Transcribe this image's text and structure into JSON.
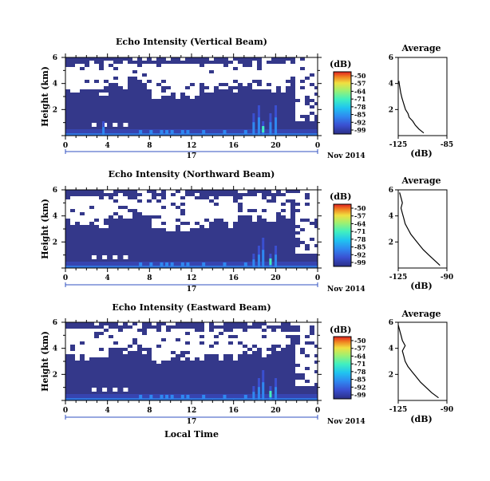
{
  "chart_data": [
    {
      "type": "heatmap",
      "title": "Echo Intensity (Vertical Beam)",
      "ylabel": "Height (km)",
      "yticks": [
        "6",
        "4",
        "2"
      ],
      "ylim": [
        0,
        6
      ],
      "xticks": [
        "0",
        "4",
        "8",
        "12",
        "16",
        "20",
        "0"
      ],
      "xlim": [
        0,
        24
      ],
      "date_day": "17",
      "date_label": "Nov 2014",
      "colorbar_unit": "(dB)",
      "colorbar_ticks": [
        "-50",
        "-57",
        "-64",
        "-71",
        "-78",
        "-85",
        "-92",
        "-99"
      ],
      "average_title": "Average",
      "average_xlabel": "(dB)",
      "average_xticks": [
        "-125",
        "-85"
      ],
      "average_yticks": [
        "6",
        "4",
        "2"
      ],
      "average_profile": [
        [
          0.2,
          -104
        ],
        [
          0.5,
          -108
        ],
        [
          0.8,
          -111
        ],
        [
          1.1,
          -113
        ],
        [
          1.4,
          -116
        ],
        [
          1.7,
          -117
        ],
        [
          2.0,
          -119
        ],
        [
          2.3,
          -120
        ],
        [
          2.6,
          -121
        ],
        [
          2.9,
          -122
        ],
        [
          3.3,
          -123
        ],
        [
          3.6,
          -123.5
        ],
        [
          3.9,
          -124
        ],
        [
          4.2,
          -124.5
        ]
      ],
      "sparse_echo_columns": [
        2.5,
        3.5,
        4.5,
        5.5
      ],
      "shallow_echo_columns": [
        7,
        8,
        9,
        9.5,
        10,
        11,
        11.5,
        13,
        15,
        17
      ],
      "strong_echo_columns": [
        3.5,
        17.8,
        18.3,
        18.7,
        19.4,
        19.9
      ]
    },
    {
      "type": "heatmap",
      "title": "Echo Intensity (Northward Beam)",
      "ylabel": "Height (km)",
      "yticks": [
        "6",
        "4",
        "2"
      ],
      "ylim": [
        0,
        6
      ],
      "xticks": [
        "0",
        "4",
        "8",
        "12",
        "16",
        "20",
        "0"
      ],
      "xlim": [
        0,
        24
      ],
      "date_day": "17",
      "date_label": "Nov 2014",
      "colorbar_unit": "(dB)",
      "colorbar_ticks": [
        "-50",
        "-57",
        "-64",
        "-71",
        "-78",
        "-85",
        "-92",
        "-99"
      ],
      "average_title": "Average",
      "average_xlabel": "(dB)",
      "average_xticks": [
        "-125",
        "-90"
      ],
      "average_yticks": [
        "6",
        "4",
        "2"
      ],
      "average_profile": [
        [
          0.2,
          -95
        ],
        [
          0.6,
          -99
        ],
        [
          1.0,
          -103
        ],
        [
          1.4,
          -107
        ],
        [
          1.8,
          -110
        ],
        [
          2.2,
          -113
        ],
        [
          2.6,
          -116
        ],
        [
          3.0,
          -118
        ],
        [
          3.4,
          -120
        ],
        [
          3.8,
          -121
        ],
        [
          4.2,
          -122
        ],
        [
          4.6,
          -123
        ],
        [
          5.0,
          -122
        ],
        [
          5.4,
          -123
        ],
        [
          5.8,
          -124
        ]
      ],
      "sparse_echo_columns": [
        2.5,
        3.5,
        4.5,
        5.5
      ],
      "shallow_echo_columns": [
        7,
        8,
        9,
        9.5,
        10,
        11,
        11.5,
        13,
        15,
        17
      ],
      "strong_echo_columns": [
        17.8,
        18.3,
        18.7,
        19.4,
        19.9
      ]
    },
    {
      "type": "heatmap",
      "title": "Echo Intensity (Eastward Beam)",
      "ylabel": "Height (km)",
      "yticks": [
        "6",
        "4",
        "2"
      ],
      "ylim": [
        0,
        6
      ],
      "xticks": [
        "0",
        "4",
        "8",
        "12",
        "16",
        "20",
        "0"
      ],
      "xlim": [
        0,
        24
      ],
      "date_day": "17",
      "date_label": "Nov 2014",
      "colorbar_unit": "(dB)",
      "colorbar_ticks": [
        "-50",
        "-57",
        "-64",
        "-71",
        "-78",
        "-85",
        "-92",
        "-99"
      ],
      "average_title": "Average",
      "average_xlabel": "(dB)",
      "average_xticks": [
        "-125",
        "-90"
      ],
      "average_yticks": [
        "6",
        "4",
        "2"
      ],
      "average_profile": [
        [
          0.2,
          -96
        ],
        [
          0.6,
          -101
        ],
        [
          1.0,
          -105
        ],
        [
          1.4,
          -109
        ],
        [
          1.8,
          -112
        ],
        [
          2.2,
          -115
        ],
        [
          2.6,
          -118
        ],
        [
          3.0,
          -120
        ],
        [
          3.4,
          -121
        ],
        [
          3.8,
          -122
        ],
        [
          4.2,
          -120
        ],
        [
          4.6,
          -122
        ],
        [
          5.0,
          -123
        ],
        [
          5.4,
          -124
        ],
        [
          5.8,
          -125
        ]
      ],
      "sparse_echo_columns": [
        2.5,
        3.5,
        4.5,
        5.5
      ],
      "shallow_echo_columns": [
        7,
        8,
        9,
        9.5,
        10,
        11,
        11.5,
        13,
        15,
        17
      ],
      "strong_echo_columns": [
        17.8,
        18.3,
        18.7,
        19.4,
        19.9
      ]
    }
  ],
  "footer": {
    "xlabel": "Local Time"
  },
  "colors": {
    "background_echo": "#34388a",
    "no_data": "#ffffff",
    "colormap": [
      "#2b2f86",
      "#3a4fd0",
      "#2f88f0",
      "#20c4f0",
      "#40f0c0",
      "#a0f070",
      "#f0e040",
      "#f08020",
      "#e02020"
    ]
  }
}
